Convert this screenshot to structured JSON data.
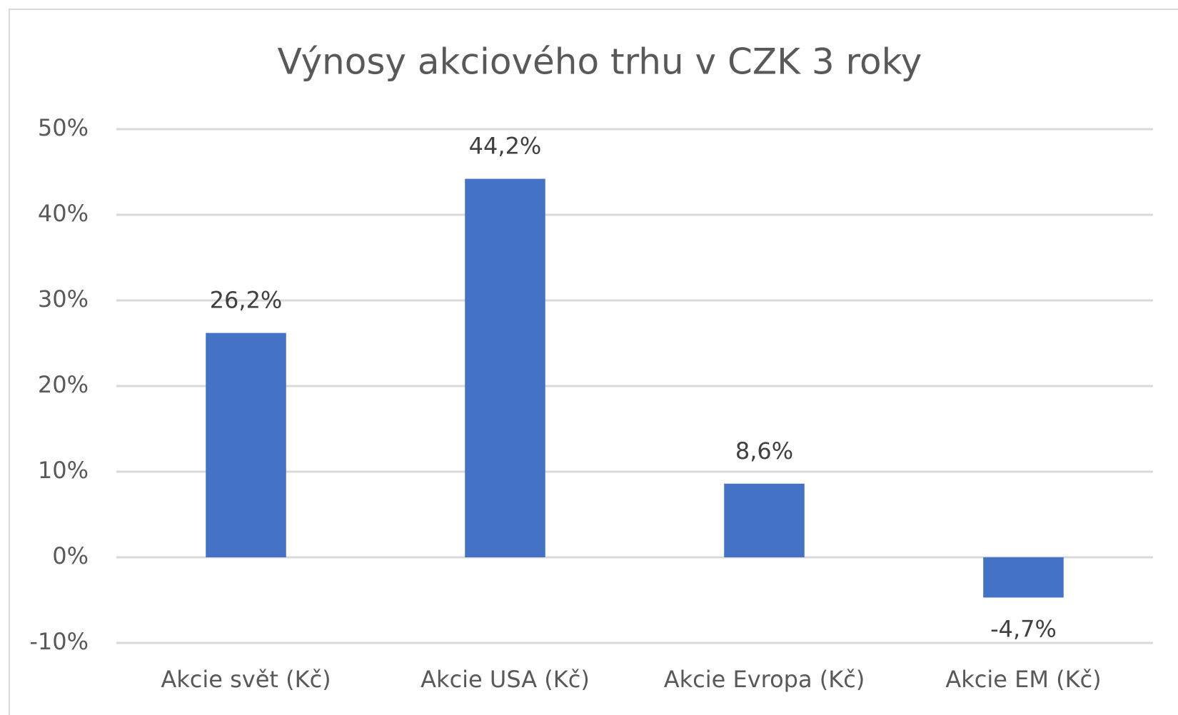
{
  "chart_data": {
    "type": "bar",
    "title": "Výnosy akciového trhu v CZK 3 roky",
    "categories": [
      "Akcie svět (Kč)",
      "Akcie USA (Kč)",
      "Akcie Evropa (Kč)",
      "Akcie EM (Kč)"
    ],
    "values": [
      26.2,
      44.2,
      8.6,
      -4.7
    ],
    "value_labels": [
      "26,2%",
      "44,2%",
      "8,6%",
      "-4,7%"
    ],
    "color": "#4472c4",
    "ylim": [
      -10,
      50
    ],
    "yticks": [
      {
        "value": -10,
        "label": "-10%"
      },
      {
        "value": 0,
        "label": "0%"
      },
      {
        "value": 10,
        "label": "10%"
      },
      {
        "value": 20,
        "label": "20%"
      },
      {
        "value": 30,
        "label": "30%"
      },
      {
        "value": 40,
        "label": "40%"
      },
      {
        "value": 50,
        "label": "50%"
      }
    ],
    "grid": true
  }
}
